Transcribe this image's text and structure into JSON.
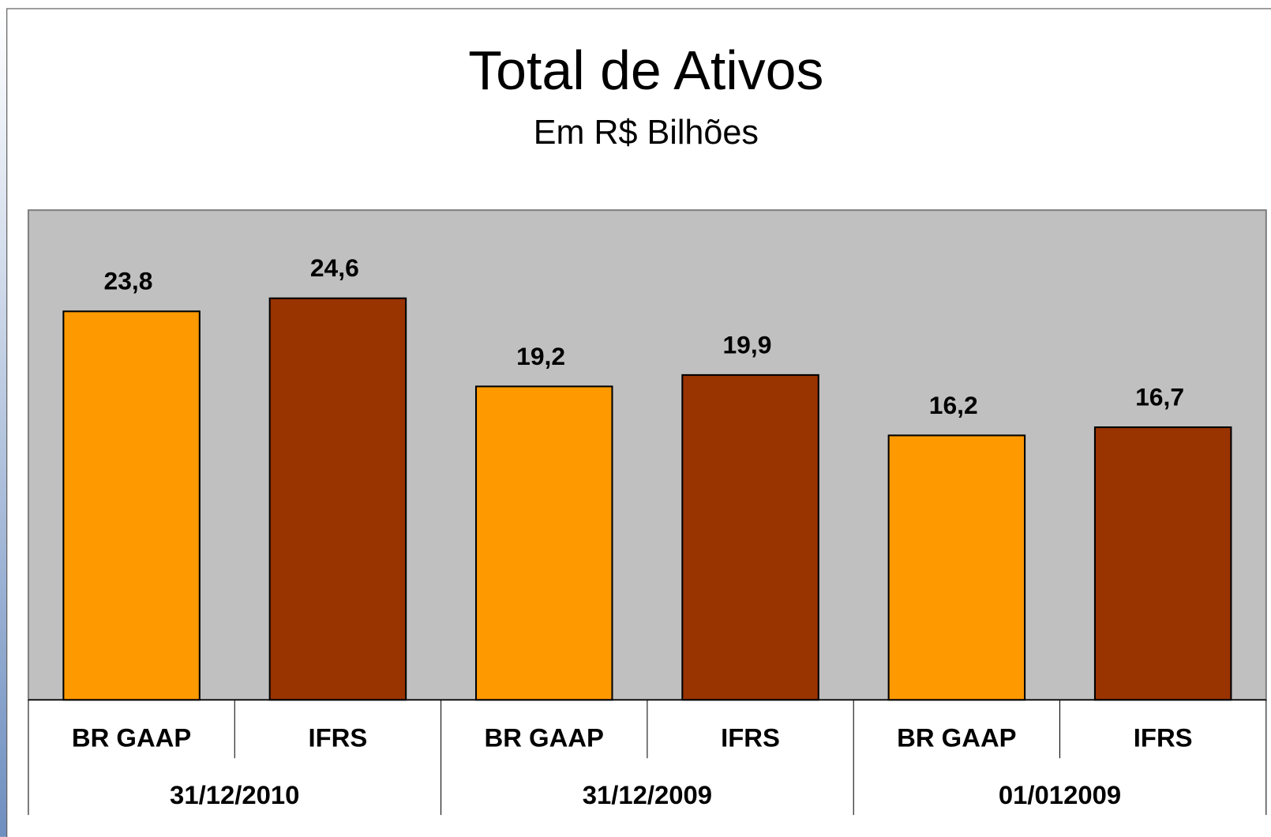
{
  "chart_data": {
    "type": "bar",
    "title": "Total de Ativos",
    "subtitle": "Em R$ Bilhões",
    "categories": [
      "31/12/2010",
      "31/12/2009",
      "01/012009"
    ],
    "series": [
      {
        "name": "BR GAAP",
        "color": "#ff9900",
        "values": [
          23.8,
          19.2,
          16.2
        ],
        "value_labels": [
          "23,8",
          "19,2",
          "16,2"
        ]
      },
      {
        "name": "IFRS",
        "color": "#993300",
        "values": [
          24.6,
          19.9,
          16.7
        ],
        "value_labels": [
          "24,6",
          "19,9",
          "16,7"
        ]
      }
    ],
    "ylim": [
      0,
      30
    ],
    "plot_background": "#c0c0c0"
  }
}
